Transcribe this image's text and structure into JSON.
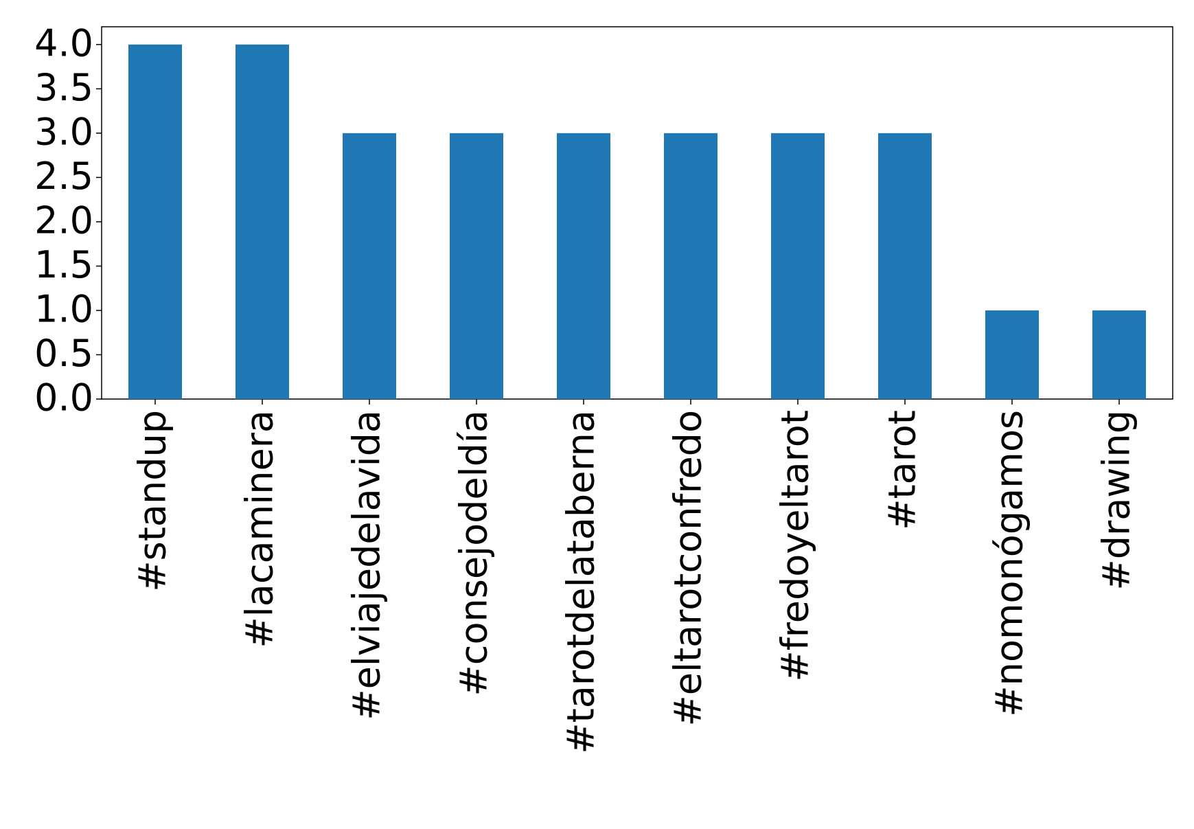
{
  "chart_data": {
    "type": "bar",
    "categories": [
      "#standup",
      "#lacaminera",
      "#elviajedelavida",
      "#consejodeldía",
      "#tarotdelataberna",
      "#eltarotconfredo",
      "#fredoyeltarot",
      "#tarot",
      "#nomonógamos",
      "#drawing"
    ],
    "values": [
      4,
      4,
      3,
      3,
      3,
      3,
      3,
      3,
      1,
      1
    ],
    "color": "#1f77b4",
    "ylim": [
      0,
      4.2
    ],
    "yticks": [
      {
        "value": 0,
        "label": "0.0"
      },
      {
        "value": 0.5,
        "label": "0.5"
      },
      {
        "value": 1,
        "label": "1.0"
      },
      {
        "value": 1.5,
        "label": "1.5"
      },
      {
        "value": 2,
        "label": "2.0"
      },
      {
        "value": 2.5,
        "label": "2.5"
      },
      {
        "value": 3,
        "label": "3.0"
      },
      {
        "value": 3.5,
        "label": "3.5"
      },
      {
        "value": 4,
        "label": "4.0"
      }
    ],
    "grid": false
  }
}
